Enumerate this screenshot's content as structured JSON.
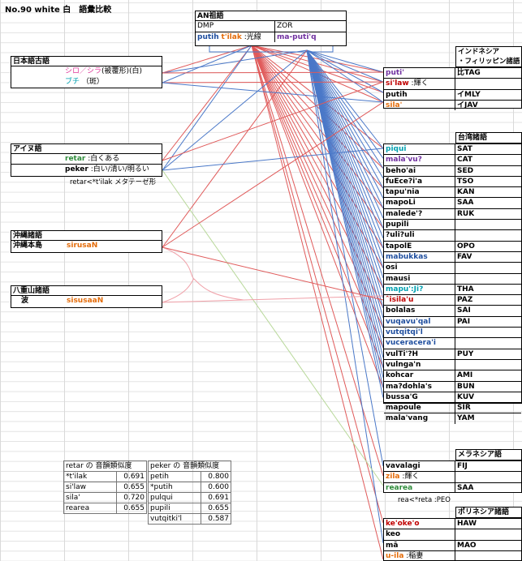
{
  "title": "No.90 white 白　語彙比較",
  "an": {
    "header": "AN祖語",
    "dmp": "DMP",
    "zor": "ZOR",
    "w1": "putih",
    "w2": "t'ilak",
    "w2_gloss": ":光線",
    "w3": "ma-puti'q"
  },
  "japanese": {
    "header": "日本語古語",
    "shiro": "シロ／シラ",
    "shiro_note": "(被覆形)(白)",
    "buchi": "ブチ",
    "buchi_note": "（斑）"
  },
  "ainu": {
    "header": "アイヌ語",
    "retar": "retar",
    "retar_gloss": ":白くある",
    "peker": "peker",
    "peker_gloss": ":白い/清い/明るい",
    "note": "retar<*t'ilak メタテーゼ形"
  },
  "okinawa": {
    "header": "沖縄諸語",
    "sub": "沖縄本島",
    "word": "sirusaN"
  },
  "yaeyama": {
    "header": "八重山諸語",
    "sub": "波",
    "word": "sisusaaN"
  },
  "indonesia": {
    "header": "インドネシア\n・フィリッピン諸語",
    "rows": [
      {
        "word": "puti'",
        "gloss": "",
        "lang": "比TAG"
      },
      {
        "word": "si'law",
        "gloss": ":輝く",
        "lang": ""
      },
      {
        "word": "putih",
        "gloss": "",
        "lang": "イMLY"
      },
      {
        "word": "sila'",
        "gloss": "",
        "lang": "イJAV"
      }
    ]
  },
  "taiwan": {
    "header": "台湾諸語",
    "rows": [
      {
        "word": "piqui",
        "lang": "SAT"
      },
      {
        "word": "mala'vu?",
        "lang": "CAT"
      },
      {
        "word": "beho'ai",
        "lang": "SED"
      },
      {
        "word": "fuEce?i'a",
        "lang": "TSO"
      },
      {
        "word": "tapu'nia",
        "lang": "KAN"
      },
      {
        "word": "mapoLi",
        "lang": "SAA"
      },
      {
        "word": "malede'?",
        "lang": "RUK"
      },
      {
        "word": "pupili",
        "lang": ""
      },
      {
        "word": "?uli?uli",
        "lang": ""
      },
      {
        "word": "tapolE",
        "lang": "OPO"
      },
      {
        "word": "mabukkas",
        "lang": "FAV"
      },
      {
        "word": "osi",
        "lang": ""
      },
      {
        "word": "mausi",
        "lang": ""
      },
      {
        "word": "mapu':Ji?",
        "lang": "THA"
      },
      {
        "word": "ˆisila'u",
        "lang": "PAZ"
      },
      {
        "word": "bolalas",
        "lang": "SAI"
      },
      {
        "word": "vuqavu'qal",
        "lang": "PAI"
      },
      {
        "word": "vutqitqi'l",
        "lang": ""
      },
      {
        "word": "vuceracera'i",
        "lang": ""
      },
      {
        "word": "vulTi'?H",
        "lang": "PUY"
      },
      {
        "word": "vulnga'n",
        "lang": ""
      },
      {
        "word": "kohcar",
        "lang": "AMI"
      },
      {
        "word": "ma?dohla's",
        "lang": "BUN"
      },
      {
        "word": "bussa'G",
        "lang": "KUV"
      },
      {
        "word": "mapoule",
        "lang": "SIR"
      },
      {
        "word": "mala'vang",
        "lang": "YAM"
      }
    ]
  },
  "melanesia": {
    "header": "メラネシア語",
    "rows": [
      {
        "word": "vavalagi",
        "gloss": "",
        "lang": "FIJ"
      },
      {
        "word": "zila",
        "gloss": ":輝く",
        "lang": ""
      },
      {
        "word": "rearea",
        "gloss": "",
        "lang": "SAA"
      }
    ],
    "note": "rea<*reta  :PEO"
  },
  "polynesia": {
    "header": "ポリネシア諸語",
    "rows": [
      {
        "word": "ke'oke'o",
        "gloss": "",
        "lang": "HAW"
      },
      {
        "word": "keo",
        "gloss": "",
        "lang": ""
      },
      {
        "word": "mā",
        "gloss": "",
        "lang": "MAO"
      },
      {
        "word": "u-ila",
        "gloss": ":稲妻",
        "lang": ""
      }
    ]
  },
  "retar_table": {
    "header": "retar の 音韻類似度",
    "rows": [
      {
        "w": "*t'ilak",
        "v": "0.691"
      },
      {
        "w": "si'law",
        "v": "0.655"
      },
      {
        "w": "sila'",
        "v": "0.720"
      },
      {
        "w": "rearea",
        "v": "0.655"
      }
    ]
  },
  "peker_table": {
    "header": "peker の 音韻類似度",
    "rows": [
      {
        "w": "petih",
        "v": "0.800"
      },
      {
        "w": "*putih",
        "v": "0.600"
      },
      {
        "w": "pulqui",
        "v": "0.691"
      },
      {
        "w": "pupili",
        "v": "0.655"
      },
      {
        "w": "vutqitki'l",
        "v": "0.587"
      }
    ]
  },
  "colors": {
    "red": "#e05a5a",
    "blue": "#4a78c8",
    "pink": "#f0a0a8",
    "green": "#b8d89a"
  }
}
